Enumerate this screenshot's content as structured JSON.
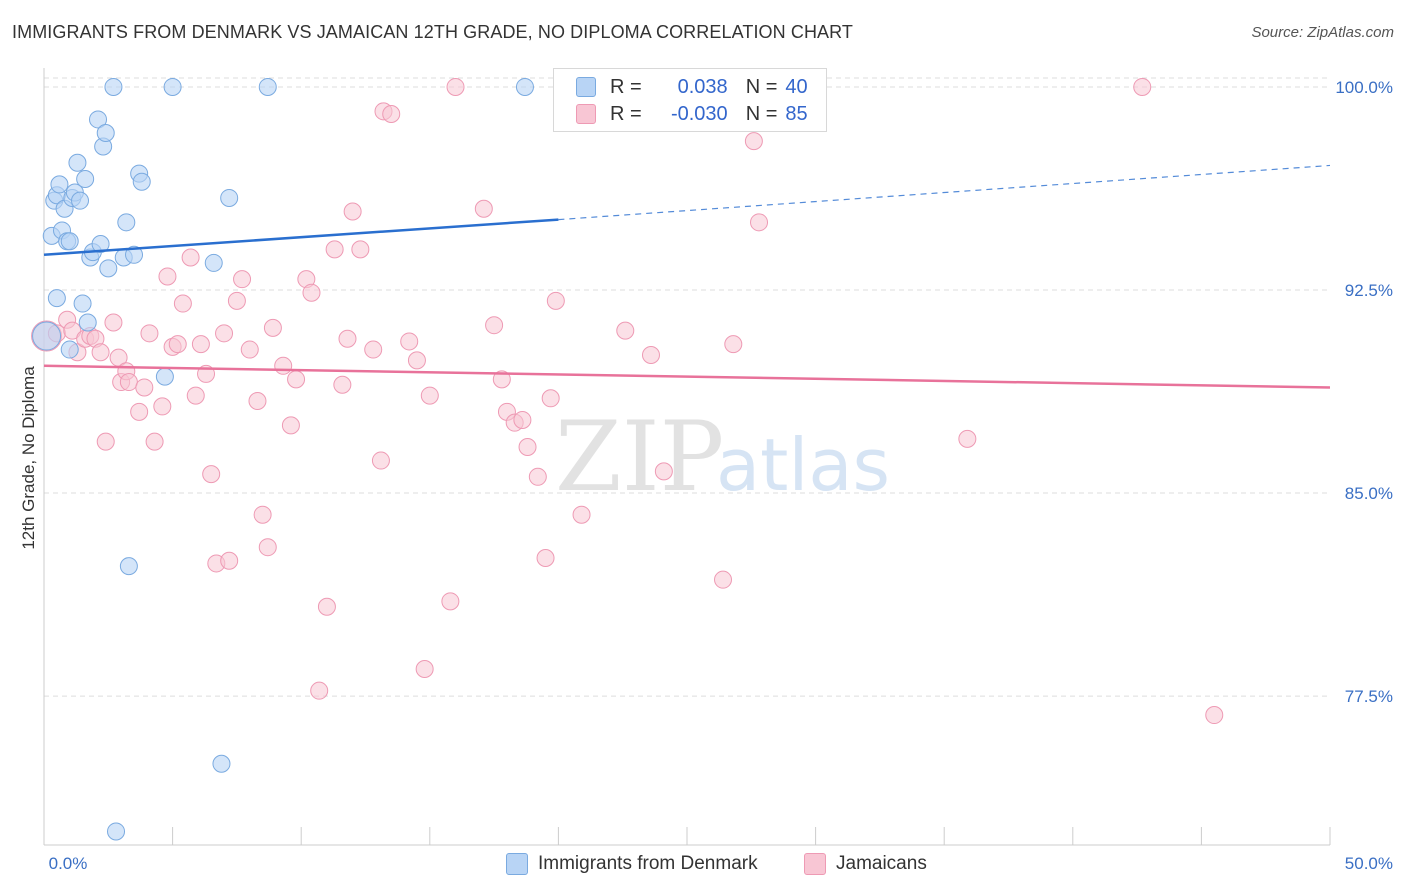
{
  "header": {
    "title": "IMMIGRANTS FROM DENMARK VS JAMAICAN 12TH GRADE, NO DIPLOMA CORRELATION CHART",
    "source": "Source: ZipAtlas.com"
  },
  "watermark": {
    "zip": "ZIP",
    "atlas": "atlas"
  },
  "legend": {
    "rows": [
      {
        "r_label": "R =",
        "r_value": "0.038",
        "n_label": "N =",
        "n_value": "40"
      },
      {
        "r_label": "R =",
        "r_value": "-0.030",
        "n_label": "N =",
        "n_value": "85"
      }
    ]
  },
  "bottom_legend": [
    "Immigrants from Denmark",
    "Jamaicans"
  ],
  "colors": {
    "denmark_fill": "#b8d4f5",
    "denmark_stroke": "#7aaae0",
    "denmark_line": "#2a6fcf",
    "jamaica_fill": "#f8c6d4",
    "jamaica_stroke": "#ee9ab4",
    "jamaica_line": "#e8729a",
    "axis_label": "#3a6fc4",
    "grid": "#dddddd"
  },
  "chart_data": {
    "type": "scatter",
    "title": "IMMIGRANTS FROM DENMARK VS JAMAICAN 12TH GRADE, NO DIPLOMA CORRELATION CHART",
    "xlabel": "",
    "ylabel": "12th Grade, No Diploma",
    "xlim": [
      0,
      50
    ],
    "ylim": [
      72.0,
      100.7
    ],
    "x_tick_labels": [
      "0.0%",
      "50.0%"
    ],
    "y_ticks": [
      100.0,
      92.5,
      85.0,
      77.5
    ],
    "y_tick_labels": [
      "100.0%",
      "92.5%",
      "85.0%",
      "77.5%"
    ],
    "grid": true,
    "legend_position": "top-center",
    "series": [
      {
        "name": "Immigrants from Denmark",
        "trend": {
          "x0": 0,
          "y0": 93.8,
          "x1": 20,
          "y1": 95.1,
          "dash_to": 50,
          "dash_y": 97.1
        },
        "points": [
          [
            0.1,
            90.8
          ],
          [
            0.3,
            94.5
          ],
          [
            0.4,
            95.8
          ],
          [
            0.5,
            96.0
          ],
          [
            0.6,
            96.4
          ],
          [
            0.7,
            94.7
          ],
          [
            0.8,
            95.5
          ],
          [
            0.9,
            94.3
          ],
          [
            1.0,
            94.3
          ],
          [
            1.1,
            95.9
          ],
          [
            1.2,
            96.1
          ],
          [
            1.3,
            97.2
          ],
          [
            1.4,
            95.8
          ],
          [
            1.5,
            92.0
          ],
          [
            1.6,
            96.6
          ],
          [
            1.7,
            91.3
          ],
          [
            1.8,
            93.7
          ],
          [
            1.9,
            93.9
          ],
          [
            2.1,
            98.8
          ],
          [
            2.2,
            94.2
          ],
          [
            2.3,
            97.8
          ],
          [
            2.4,
            98.3
          ],
          [
            2.5,
            93.3
          ],
          [
            2.7,
            100.0
          ],
          [
            2.8,
            72.5
          ],
          [
            3.1,
            93.7
          ],
          [
            3.2,
            95.0
          ],
          [
            3.3,
            82.3
          ],
          [
            3.5,
            93.8
          ],
          [
            3.7,
            96.8
          ],
          [
            3.8,
            96.5
          ],
          [
            4.7,
            89.3
          ],
          [
            5.0,
            100.0
          ],
          [
            6.6,
            93.5
          ],
          [
            6.9,
            75.0
          ],
          [
            7.2,
            95.9
          ],
          [
            8.7,
            100.0
          ],
          [
            18.7,
            100.0
          ],
          [
            0.5,
            92.2
          ],
          [
            1.0,
            90.3
          ]
        ]
      },
      {
        "name": "Jamaicans",
        "trend": {
          "x0": 0,
          "y0": 89.7,
          "x1": 50,
          "y1": 88.9
        },
        "points": [
          [
            0.1,
            90.8
          ],
          [
            0.5,
            90.9
          ],
          [
            0.9,
            91.4
          ],
          [
            1.1,
            91.0
          ],
          [
            1.3,
            90.2
          ],
          [
            1.6,
            90.7
          ],
          [
            1.8,
            90.8
          ],
          [
            2.0,
            90.7
          ],
          [
            2.2,
            90.2
          ],
          [
            2.4,
            86.9
          ],
          [
            2.7,
            91.3
          ],
          [
            2.9,
            90.0
          ],
          [
            3.0,
            89.1
          ],
          [
            3.2,
            89.5
          ],
          [
            3.3,
            89.1
          ],
          [
            3.7,
            88.0
          ],
          [
            3.9,
            88.9
          ],
          [
            4.1,
            90.9
          ],
          [
            4.3,
            86.9
          ],
          [
            4.6,
            88.2
          ],
          [
            4.8,
            93.0
          ],
          [
            5.0,
            90.4
          ],
          [
            5.2,
            90.5
          ],
          [
            5.4,
            92.0
          ],
          [
            5.7,
            93.7
          ],
          [
            5.9,
            88.6
          ],
          [
            6.1,
            90.5
          ],
          [
            6.3,
            89.4
          ],
          [
            6.5,
            85.7
          ],
          [
            6.7,
            82.4
          ],
          [
            7.0,
            90.9
          ],
          [
            7.2,
            82.5
          ],
          [
            7.5,
            92.1
          ],
          [
            7.7,
            92.9
          ],
          [
            8.0,
            90.3
          ],
          [
            8.3,
            88.4
          ],
          [
            8.5,
            84.2
          ],
          [
            8.7,
            83.0
          ],
          [
            8.9,
            91.1
          ],
          [
            9.3,
            89.7
          ],
          [
            9.6,
            87.5
          ],
          [
            9.8,
            89.2
          ],
          [
            10.2,
            92.9
          ],
          [
            10.4,
            92.4
          ],
          [
            10.7,
            77.7
          ],
          [
            11.0,
            80.8
          ],
          [
            11.3,
            94.0
          ],
          [
            11.6,
            89.0
          ],
          [
            11.8,
            90.7
          ],
          [
            12.0,
            95.4
          ],
          [
            12.3,
            94.0
          ],
          [
            12.8,
            90.3
          ],
          [
            13.1,
            86.2
          ],
          [
            13.2,
            99.1
          ],
          [
            13.5,
            99.0
          ],
          [
            14.2,
            90.6
          ],
          [
            14.5,
            89.9
          ],
          [
            14.8,
            78.5
          ],
          [
            15.0,
            88.6
          ],
          [
            15.8,
            81.0
          ],
          [
            16.0,
            100.0
          ],
          [
            17.1,
            95.5
          ],
          [
            17.5,
            91.2
          ],
          [
            17.8,
            89.2
          ],
          [
            18.0,
            88.0
          ],
          [
            18.3,
            87.6
          ],
          [
            18.6,
            87.7
          ],
          [
            18.8,
            86.7
          ],
          [
            19.2,
            85.6
          ],
          [
            19.5,
            82.6
          ],
          [
            19.7,
            88.5
          ],
          [
            19.9,
            92.1
          ],
          [
            20.9,
            84.2
          ],
          [
            22.6,
            91.0
          ],
          [
            23.6,
            90.1
          ],
          [
            24.1,
            85.8
          ],
          [
            26.4,
            81.8
          ],
          [
            26.8,
            90.5
          ],
          [
            27.2,
            100.0
          ],
          [
            27.6,
            98.0
          ],
          [
            27.8,
            95.0
          ],
          [
            35.9,
            87.0
          ],
          [
            42.7,
            100.0
          ],
          [
            45.5,
            76.8
          ],
          [
            27.0,
            100.1
          ]
        ]
      }
    ]
  }
}
